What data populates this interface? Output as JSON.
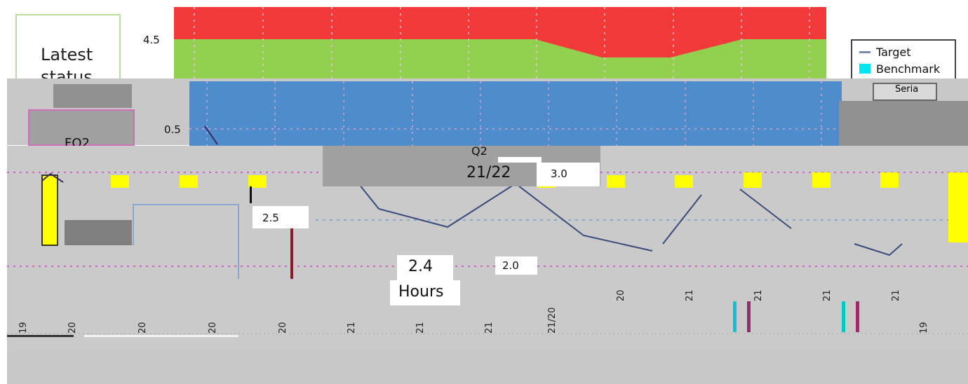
{
  "status_card": {
    "title": "Latest status"
  },
  "legend": {
    "items": [
      {
        "label": "Target",
        "swatch": "line",
        "color": "#7a8ca8"
      },
      {
        "label": "Benchmark",
        "swatch": "box",
        "color": "#00e5ee"
      }
    ],
    "fragment": "Seria"
  },
  "colors": {
    "red_band": "#f23a3a",
    "green_band": "#92d050",
    "blue_band": "#4f8ccc",
    "gray_band": "#c8c8c8",
    "bar_yellow": "#ffff00",
    "bar_gray": "#808080",
    "target_line": "#3a4a7a",
    "grid_dots": "#d066c0"
  },
  "chart_data": [
    {
      "type": "area",
      "title": "",
      "ylabel": "",
      "xlabel": "",
      "yticks": [
        4.5
      ],
      "bands": [
        {
          "name": "",
          "color": "#f23a3a"
        },
        {
          "name": "",
          "color": "#92d050"
        }
      ]
    },
    {
      "type": "line",
      "title": "",
      "ylabel": "",
      "xlabel": "Hours",
      "yticks": [
        3.0,
        2.5,
        2.0
      ],
      "ytick_labels": [
        "3.0",
        "2.5",
        "2.0"
      ],
      "highlight_value": "2.4",
      "highlight_label": "21/22",
      "fragments": [
        "0.5",
        "Q2"
      ],
      "x_fragments": [
        "19",
        "20",
        "20",
        "20",
        "20",
        "21",
        "21",
        "21",
        "21/20",
        "20",
        "21",
        "21",
        "21",
        "21",
        "19"
      ]
    }
  ],
  "fragments": {
    "fq2": "FQ2",
    "q2": "Q2",
    "y05": "0.5",
    "y30": "3.0",
    "hl_value": "2.4",
    "hl_date": "21/22",
    "hours": "Hours"
  }
}
